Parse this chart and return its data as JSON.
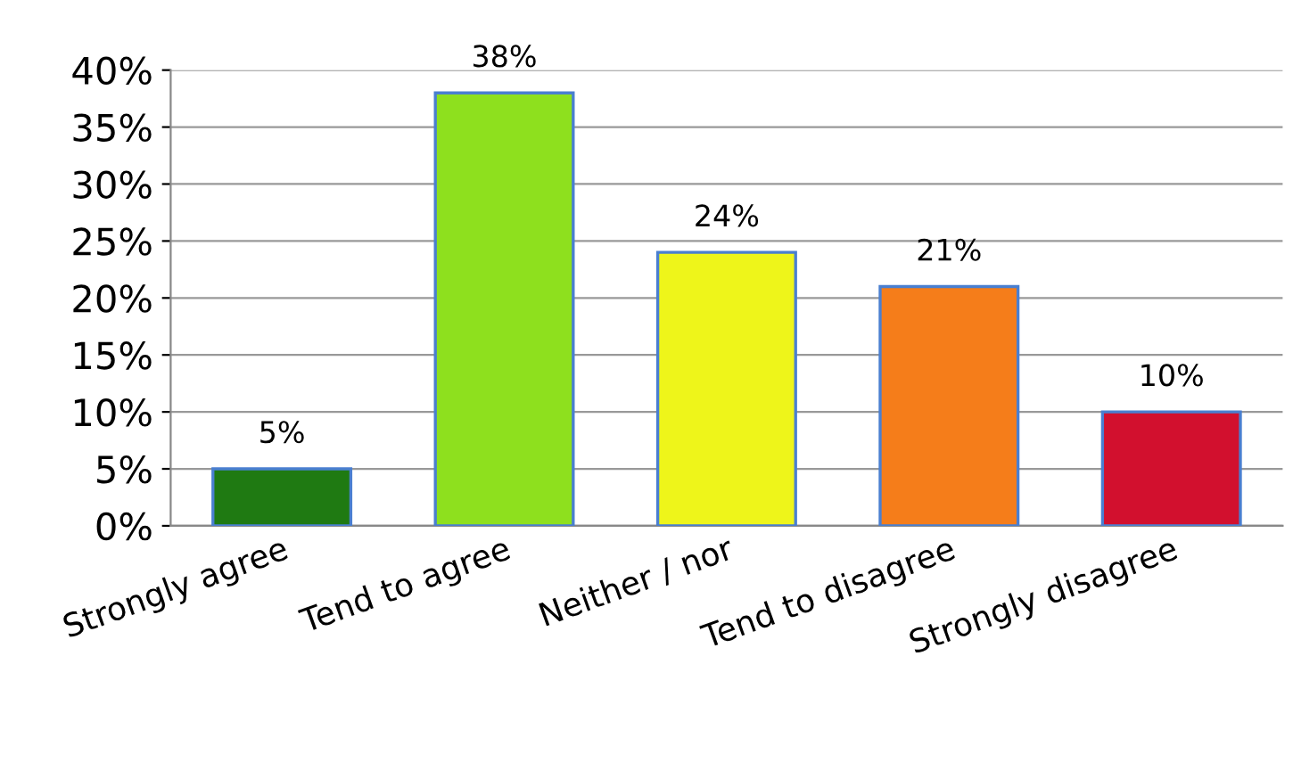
{
  "chart_data": {
    "type": "bar",
    "categories": [
      "Strongly agree",
      "Tend to agree",
      "Neither / nor",
      "Tend to disagree",
      "Strongly disagree"
    ],
    "values": [
      5,
      38,
      24,
      21,
      10
    ],
    "colors": [
      "#1f7a12",
      "#8ee01e",
      "#eef51a",
      "#f57d1a",
      "#d2102e"
    ],
    "value_labels": [
      "5%",
      "38%",
      "24%",
      "21%",
      "10%"
    ],
    "ylim": [
      0,
      40
    ],
    "yticks": [
      {
        "value": 0,
        "label": "0%"
      },
      {
        "value": 5,
        "label": "5%"
      },
      {
        "value": 10,
        "label": "10%"
      },
      {
        "value": 15,
        "label": "15%"
      },
      {
        "value": 20,
        "label": "20%"
      },
      {
        "value": 25,
        "label": "25%"
      },
      {
        "value": 30,
        "label": "30%"
      },
      {
        "value": 35,
        "label": "35%"
      },
      {
        "value": 40,
        "label": "40%"
      }
    ],
    "grid": "y",
    "legend": false
  }
}
